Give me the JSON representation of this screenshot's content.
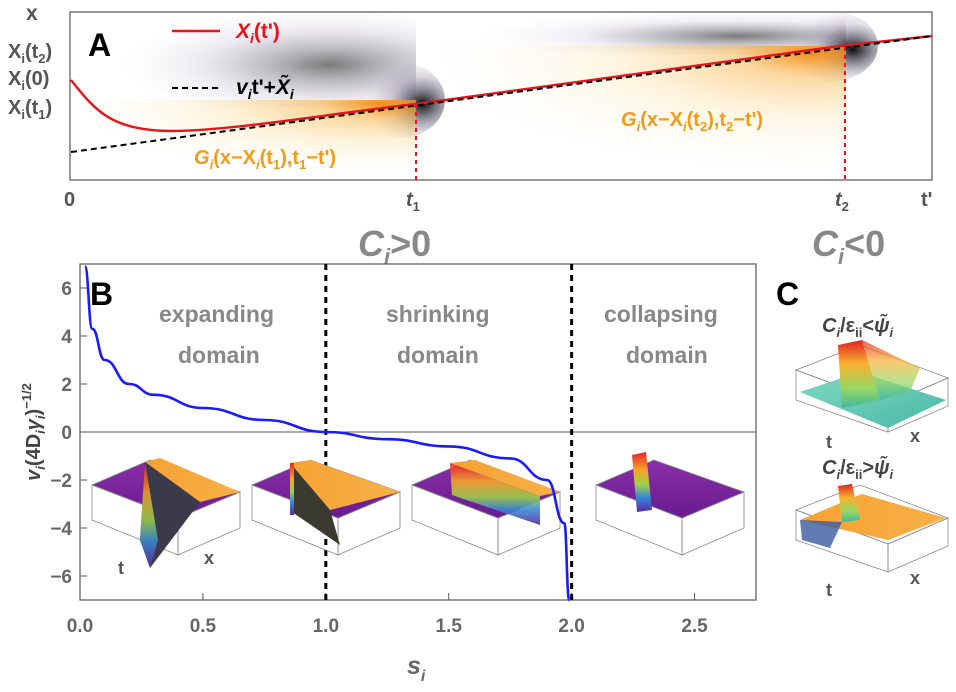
{
  "panel_a": {
    "letter": "A",
    "legend": {
      "red_label": "X",
      "red_sub": "i",
      "red_arg": "(t')",
      "black_v": "v",
      "black_sub": "i",
      "black_rest": "t'+",
      "black_x": "X̃",
      "black_x_sub": "i"
    },
    "y_axis_label": "x",
    "y_ticks": [
      {
        "main": "X",
        "sub": "i",
        "arg_open": "(t",
        "arg_sub": "2",
        "arg_close": ")"
      },
      {
        "main": "X",
        "sub": "i",
        "arg_open": "(0)",
        "arg_sub": "",
        "arg_close": ""
      },
      {
        "main": "X",
        "sub": "i",
        "arg_open": "(t",
        "arg_sub": "1",
        "arg_close": ")"
      }
    ],
    "x_axis_label": "t'",
    "x_ticks": [
      {
        "main": "0",
        "sub": ""
      },
      {
        "main": "t",
        "sub": "1"
      },
      {
        "main": "t",
        "sub": "2"
      }
    ],
    "green1": {
      "g": "G",
      "sub": "i",
      "rest": "(x−X",
      "sub2": "i",
      "rest2": "(t",
      "sub3": "1",
      "rest3": "),t",
      "sub4": "1",
      "rest4": "−t')"
    },
    "green2": {
      "g": "G",
      "sub": "i",
      "rest": "(x−X",
      "sub2": "i",
      "rest2": "(t",
      "sub3": "2",
      "rest3": "),t",
      "sub4": "2",
      "rest4": "−t')"
    },
    "cond_left": {
      "c": "C",
      "sub": "i",
      "rest": ">0"
    },
    "cond_right": {
      "c": "C",
      "sub": "i",
      "rest": "<0"
    },
    "colors": {
      "trajectory": "#e8141b",
      "asymptote": "#000000",
      "kernel": "#f5a623"
    }
  },
  "panel_b": {
    "letter": "B",
    "regions": [
      {
        "line1": "expanding",
        "line2": "domain"
      },
      {
        "line1": "shrinking",
        "line2": "domain"
      },
      {
        "line1": "collapsing",
        "line2": "domain"
      }
    ],
    "ylabel": {
      "v": "v",
      "v_sub": "i",
      "open": "(4D",
      "d_sub": "i",
      "gamma": "γ",
      "g_sub": "i",
      "close": ")",
      "exp": "−1/2"
    },
    "xlabel": {
      "s": "s",
      "sub": "i"
    },
    "inset_axes": {
      "t": "t",
      "x": "x"
    }
  },
  "panel_c": {
    "letter": "C",
    "top": {
      "c": "C",
      "sub": "i",
      "slash": "/ε",
      "eps_sub": "ii",
      "rel": "<",
      "psi": "ψ̃",
      "psi_sub": "i"
    },
    "bottom": {
      "c": "C",
      "sub": "i",
      "slash": "/ε",
      "eps_sub": "ii",
      "rel": ">",
      "psi": "ψ̃",
      "psi_sub": "i"
    },
    "axes": {
      "t": "t",
      "x": "x"
    }
  },
  "chart_data": {
    "type": "line",
    "x": [
      0.02,
      0.05,
      0.1,
      0.2,
      0.3,
      0.5,
      0.75,
      1.0,
      1.25,
      1.5,
      1.75,
      1.9,
      1.97,
      1.99
    ],
    "series": [
      {
        "values": [
          6.9,
          4.3,
          3.0,
          2.0,
          1.55,
          1.0,
          0.5,
          0.0,
          -0.3,
          -0.6,
          -1.1,
          -2.0,
          -3.8,
          -7.0
        ],
        "color": "#1a1aff"
      }
    ],
    "xlim": [
      0,
      2.75
    ],
    "ylim": [
      -7,
      7
    ],
    "x_ticks": [
      "0.0",
      "0.5",
      "1.0",
      "1.5",
      "2.0",
      "2.5"
    ],
    "y_ticks": [
      "6",
      "4",
      "2",
      "0",
      "−2",
      "−4",
      "−6"
    ],
    "vlines": [
      1.0,
      2.0
    ],
    "hline": 0
  }
}
